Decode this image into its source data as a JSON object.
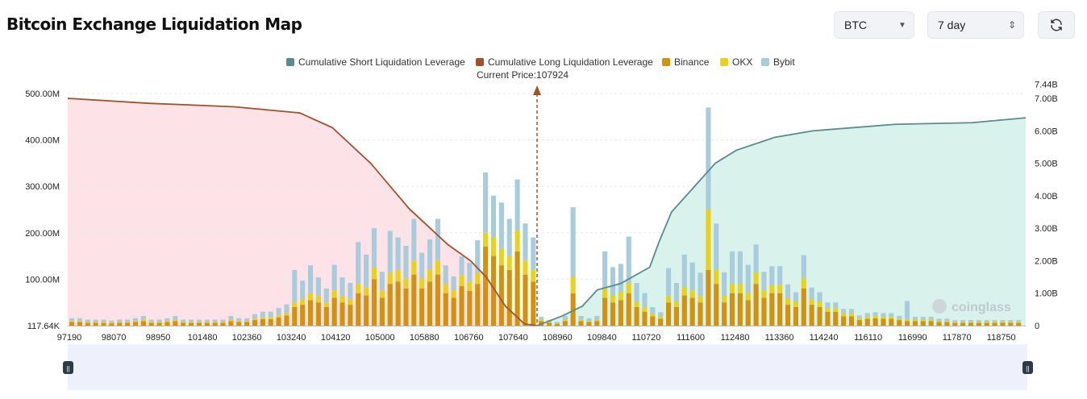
{
  "header": {
    "title": "Bitcoin Exchange Liquidation Map",
    "coin": "BTC",
    "range": "7 day"
  },
  "colors": {
    "short": "#5b8a8f",
    "long": "#a0522d",
    "binance": "#d4920a",
    "okx": "#e8d21a",
    "bybit": "#a8ccdc",
    "long_area": "#fde3e8",
    "short_area": "#d9f3ec",
    "price_line": "#a0522d"
  },
  "chart_data": {
    "type": "bar",
    "current_price_label": "Current Price:107924",
    "current_price": 107924,
    "legend": [
      {
        "name": "Cumulative Short Liquidation Leverage",
        "color": "#5b8a8f"
      },
      {
        "name": "Cumulative Long Liquidation Leverage",
        "color": "#a0522d"
      },
      {
        "name": "Binance",
        "color": "#d4920a"
      },
      {
        "name": "OKX",
        "color": "#e8d21a"
      },
      {
        "name": "Bybit",
        "color": "#a8ccdc"
      }
    ],
    "x_tick_labels": [
      "97190",
      "98070",
      "98950",
      "101480",
      "102360",
      "103240",
      "104120",
      "105000",
      "105880",
      "106760",
      "107640",
      "108960",
      "109840",
      "110720",
      "111600",
      "112480",
      "113360",
      "114240",
      "116110",
      "116990",
      "117870",
      "118750"
    ],
    "y_left_tick_labels": [
      "500.00M",
      "400.00M",
      "300.00M",
      "200.00M",
      "100.00M",
      "117.64K"
    ],
    "y_left_ticks": [
      500,
      400,
      300,
      200,
      100,
      0
    ],
    "y_left_ylim": [
      0,
      500
    ],
    "y_right_tick_labels": [
      "7.44B",
      "7.00B",
      "6.00B",
      "5.00B",
      "4.00B",
      "3.00B",
      "2.00B",
      "1.00B",
      "0"
    ],
    "y_right_ticks": [
      7.44,
      7,
      6,
      5,
      4,
      3,
      2,
      1,
      0
    ],
    "y_right_ylim": [
      0,
      7.44
    ],
    "price_range": [
      97190,
      119100
    ],
    "bars_binance": [
      8,
      8,
      6,
      6,
      6,
      5,
      6,
      6,
      8,
      10,
      6,
      6,
      8,
      10,
      6,
      6,
      6,
      6,
      6,
      6,
      10,
      8,
      8,
      12,
      14,
      14,
      18,
      22,
      40,
      45,
      55,
      50,
      40,
      60,
      50,
      45,
      70,
      65,
      100,
      60,
      90,
      95,
      80,
      110,
      80,
      95,
      110,
      70,
      60,
      85,
      75,
      90,
      170,
      150,
      130,
      120,
      160,
      110,
      95,
      10,
      6,
      4,
      10,
      70,
      10,
      8,
      10,
      60,
      50,
      55,
      70,
      40,
      30,
      20,
      15,
      50,
      40,
      65,
      60,
      50,
      120,
      90,
      50,
      70,
      70,
      55,
      90,
      60,
      70,
      70,
      45,
      40,
      80,
      45,
      40,
      30,
      30,
      20,
      20,
      12,
      15,
      16,
      15,
      15,
      12,
      10,
      10,
      10,
      10,
      8,
      8,
      6,
      6,
      6,
      6,
      6,
      6,
      6,
      6,
      6
    ],
    "bars_okx": [
      2,
      2,
      2,
      2,
      2,
      2,
      2,
      2,
      2,
      3,
      2,
      2,
      2,
      3,
      2,
      2,
      2,
      2,
      2,
      2,
      3,
      2,
      2,
      3,
      4,
      4,
      5,
      6,
      10,
      12,
      15,
      14,
      10,
      16,
      14,
      12,
      20,
      18,
      25,
      16,
      24,
      25,
      22,
      30,
      22,
      26,
      30,
      20,
      16,
      24,
      20,
      24,
      30,
      40,
      35,
      30,
      45,
      30,
      25,
      3,
      2,
      1,
      3,
      35,
      3,
      2,
      3,
      20,
      16,
      18,
      22,
      12,
      10,
      6,
      4,
      14,
      12,
      18,
      16,
      14,
      130,
      30,
      15,
      20,
      20,
      16,
      25,
      16,
      18,
      18,
      14,
      12,
      22,
      12,
      12,
      8,
      8,
      6,
      6,
      4,
      4,
      5,
      4,
      4,
      3,
      3,
      3,
      3,
      3,
      2,
      2,
      2,
      2,
      2,
      2,
      2,
      2,
      2,
      2,
      2
    ],
    "bars_bybit": [
      6,
      6,
      5,
      5,
      5,
      4,
      5,
      5,
      6,
      8,
      5,
      5,
      6,
      8,
      5,
      5,
      5,
      5,
      5,
      5,
      8,
      6,
      6,
      10,
      12,
      12,
      15,
      18,
      70,
      40,
      60,
      40,
      30,
      55,
      40,
      35,
      90,
      70,
      85,
      40,
      90,
      70,
      70,
      90,
      55,
      65,
      90,
      40,
      30,
      40,
      40,
      70,
      130,
      90,
      100,
      80,
      110,
      80,
      70,
      6,
      4,
      3,
      8,
      150,
      8,
      6,
      8,
      80,
      60,
      60,
      100,
      40,
      30,
      14,
      10,
      60,
      40,
      70,
      60,
      50,
      220,
      100,
      50,
      70,
      70,
      60,
      60,
      40,
      40,
      40,
      30,
      20,
      50,
      25,
      20,
      12,
      12,
      10,
      10,
      6,
      8,
      8,
      8,
      8,
      6,
      40,
      6,
      6,
      6,
      5,
      5,
      4,
      4,
      4,
      4,
      4,
      4,
      4,
      4,
      4
    ],
    "cum_long_B": [
      [
        97190,
        7.0
      ],
      [
        99000,
        6.85
      ],
      [
        101000,
        6.74
      ],
      [
        102500,
        6.55
      ],
      [
        103240,
        6.1
      ],
      [
        104120,
        5.0
      ],
      [
        105000,
        3.6
      ],
      [
        105880,
        2.5
      ],
      [
        106400,
        2.0
      ],
      [
        106760,
        1.5
      ],
      [
        107200,
        0.6
      ],
      [
        107640,
        0.05
      ],
      [
        107924,
        0
      ]
    ],
    "cum_short_B": [
      [
        107924,
        0
      ],
      [
        108500,
        0.3
      ],
      [
        108960,
        0.6
      ],
      [
        109300,
        1.1
      ],
      [
        109840,
        1.3
      ],
      [
        110500,
        1.8
      ],
      [
        110720,
        2.6
      ],
      [
        111000,
        3.5
      ],
      [
        111600,
        4.4
      ],
      [
        112000,
        5.0
      ],
      [
        112480,
        5.4
      ],
      [
        113360,
        5.8
      ],
      [
        114240,
        6.0
      ],
      [
        116110,
        6.2
      ],
      [
        117870,
        6.25
      ],
      [
        119100,
        6.4
      ]
    ]
  }
}
